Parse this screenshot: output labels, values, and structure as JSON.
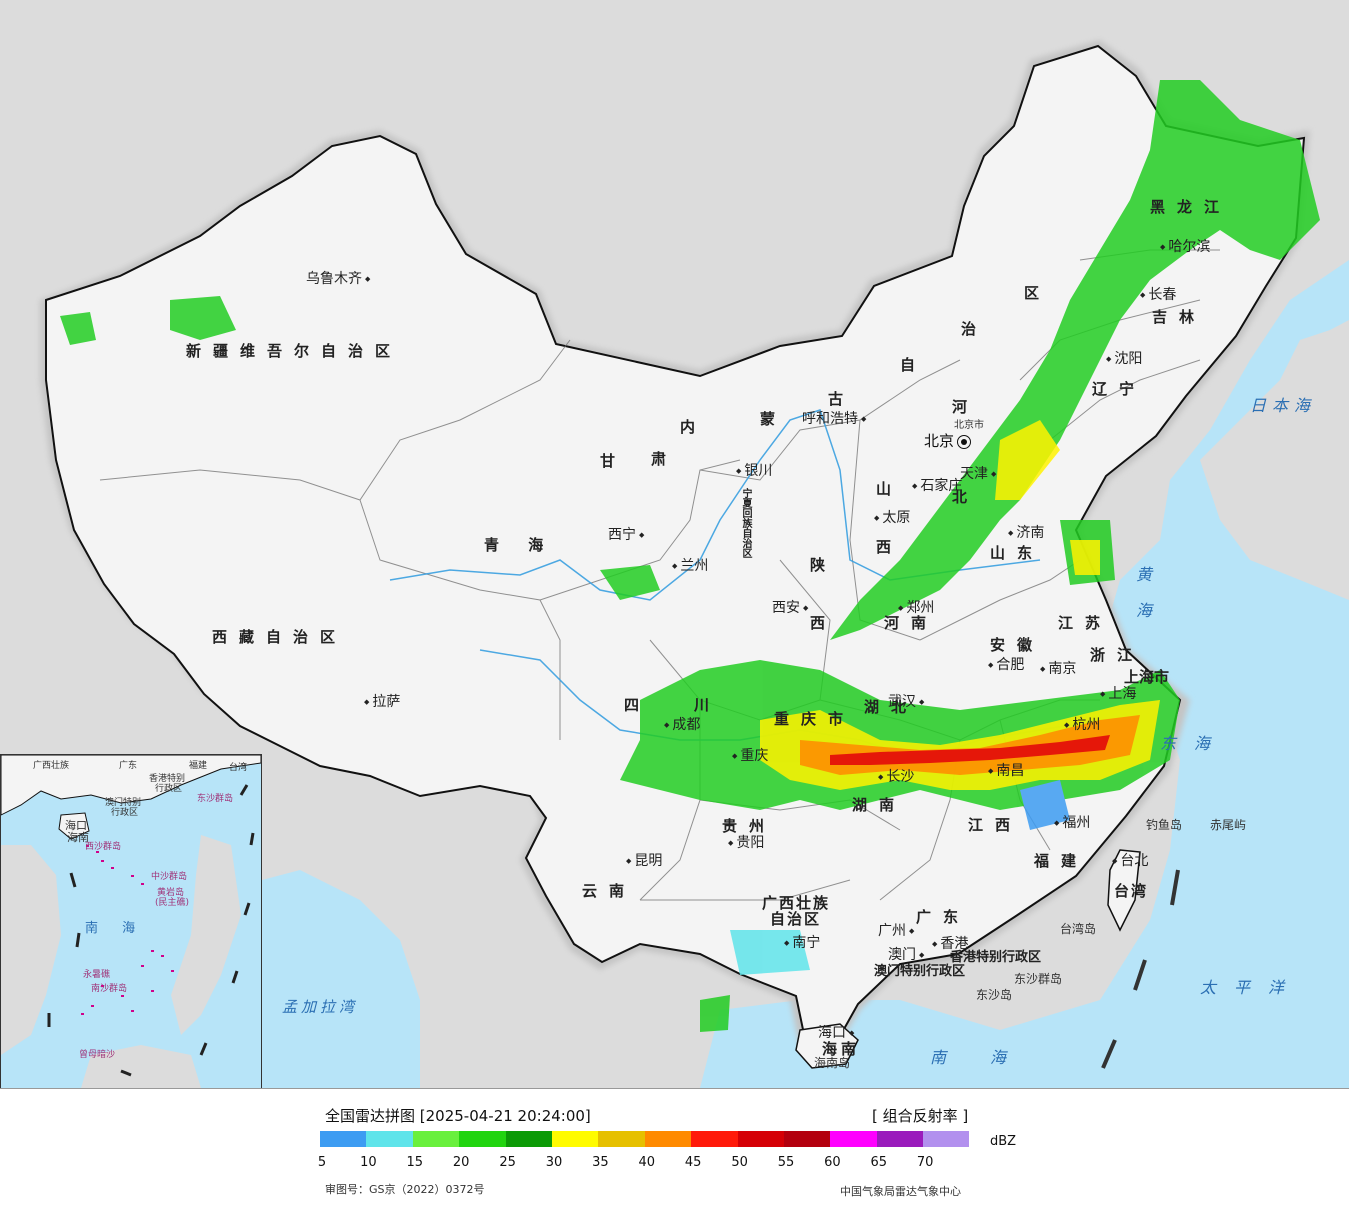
{
  "map": {
    "provinces": [
      {
        "id": "xinjiang",
        "text": "新疆维吾尔自治区"
      },
      {
        "id": "xizang",
        "text": "西藏自治区"
      },
      {
        "id": "qinghai",
        "text": "青  海"
      },
      {
        "id": "gansu",
        "text": "甘"
      },
      {
        "id": "gansu2",
        "text": "肃"
      },
      {
        "id": "neimenggu1",
        "text": "内"
      },
      {
        "id": "neimenggu2",
        "text": "蒙"
      },
      {
        "id": "neimenggu3",
        "text": "古"
      },
      {
        "id": "neimenggu4",
        "text": "自"
      },
      {
        "id": "neimenggu5",
        "text": "治"
      },
      {
        "id": "neimenggu6",
        "text": "区"
      },
      {
        "id": "heilongjiang",
        "text": "黑龙江"
      },
      {
        "id": "jilin",
        "text": "吉林"
      },
      {
        "id": "liaoning",
        "text": "辽宁"
      },
      {
        "id": "hebei1",
        "text": "河"
      },
      {
        "id": "hebei2",
        "text": "北"
      },
      {
        "id": "shandong",
        "text": "山东"
      },
      {
        "id": "shanxi1",
        "text": "山"
      },
      {
        "id": "shanxi2",
        "text": "西"
      },
      {
        "id": "shaanxi1",
        "text": "陕"
      },
      {
        "id": "shaanxi2",
        "text": "西"
      },
      {
        "id": "henan",
        "text": "河南"
      },
      {
        "id": "jiangsu",
        "text": "江苏"
      },
      {
        "id": "anhui",
        "text": "安徽"
      },
      {
        "id": "sichuan1",
        "text": "四"
      },
      {
        "id": "sichuan2",
        "text": "川"
      },
      {
        "id": "chongqing",
        "text": "重庆市"
      },
      {
        "id": "hubei",
        "text": "湖北"
      },
      {
        "id": "hunan",
        "text": "湖南"
      },
      {
        "id": "jiangxi",
        "text": "江西"
      },
      {
        "id": "zhejiang",
        "text": "浙江"
      },
      {
        "id": "fujian",
        "text": "福建"
      },
      {
        "id": "guizhou",
        "text": "贵州"
      },
      {
        "id": "yunnan",
        "text": "云南"
      },
      {
        "id": "guangxi",
        "text": "广西壮族"
      },
      {
        "id": "guangxi2",
        "text": "自治区"
      },
      {
        "id": "guangdong",
        "text": "广东"
      },
      {
        "id": "hainan",
        "text": "海南"
      },
      {
        "id": "taiwan",
        "text": "台湾"
      },
      {
        "id": "ningxia",
        "text": "宁夏回族自治区"
      },
      {
        "id": "shanghai",
        "text": "上海市"
      },
      {
        "id": "tianjin",
        "text": "天津"
      }
    ],
    "cities": [
      {
        "id": "urumqi",
        "text": "乌鲁木齐"
      },
      {
        "id": "lhasa",
        "text": "拉萨"
      },
      {
        "id": "xining",
        "text": "西宁"
      },
      {
        "id": "lanzhou",
        "text": "兰州"
      },
      {
        "id": "yinchuan",
        "text": "银川"
      },
      {
        "id": "hohhot",
        "text": "呼和浩特"
      },
      {
        "id": "taiyuan",
        "text": "太原"
      },
      {
        "id": "shijiazhuang",
        "text": "石家庄"
      },
      {
        "id": "xian",
        "text": "西安"
      },
      {
        "id": "zhengzhou",
        "text": "郑州"
      },
      {
        "id": "chengdu",
        "text": "成都"
      },
      {
        "id": "chongqing_city",
        "text": "重庆"
      },
      {
        "id": "wuhan",
        "text": "武汉"
      },
      {
        "id": "hefei",
        "text": "合肥"
      },
      {
        "id": "nanjing",
        "text": "南京"
      },
      {
        "id": "shanghai_city",
        "text": "上海"
      },
      {
        "id": "hangzhou",
        "text": "杭州"
      },
      {
        "id": "nanchang",
        "text": "南昌"
      },
      {
        "id": "changsha",
        "text": "长沙"
      },
      {
        "id": "fuzhou",
        "text": "福州"
      },
      {
        "id": "guiyang",
        "text": "贵阳"
      },
      {
        "id": "kunming",
        "text": "昆明"
      },
      {
        "id": "nanning",
        "text": "南宁"
      },
      {
        "id": "guangzhou",
        "text": "广州"
      },
      {
        "id": "macau",
        "text": "澳门"
      },
      {
        "id": "hongkong",
        "text": "香港"
      },
      {
        "id": "haikou",
        "text": "海口"
      },
      {
        "id": "taibei",
        "text": "台北"
      },
      {
        "id": "jinan",
        "text": "济南"
      },
      {
        "id": "shenyang",
        "text": "沈阳"
      },
      {
        "id": "changchun",
        "text": "长春"
      },
      {
        "id": "harbin",
        "text": "哈尔滨"
      },
      {
        "id": "tianjin_city",
        "text": "天津"
      }
    ],
    "capital": {
      "text": "北京",
      "label_small": "北京市"
    },
    "seas": [
      {
        "id": "japan_sea",
        "text": "日本海"
      },
      {
        "id": "yellow_sea",
        "text": "黄海"
      },
      {
        "id": "east_sea",
        "text": "东海"
      },
      {
        "id": "south_sea",
        "text": "南海"
      },
      {
        "id": "pacific",
        "text": "太平洋"
      },
      {
        "id": "bengal",
        "text": "孟加拉湾"
      }
    ],
    "islands": [
      {
        "id": "diaoyu",
        "text": "钓鱼岛"
      },
      {
        "id": "chiwei",
        "text": "赤尾屿"
      },
      {
        "id": "taiwan_island",
        "text": "台湾岛"
      },
      {
        "id": "dongsha",
        "text": "东沙群岛"
      },
      {
        "id": "dongsha_island",
        "text": "东沙岛"
      },
      {
        "id": "hainan_island",
        "text": "海南岛"
      }
    ],
    "sars": [
      {
        "id": "hk_sar",
        "text": "香港特别行政区"
      },
      {
        "id": "mo_sar",
        "text": "澳门特别行政区"
      }
    ],
    "inset_labels": {
      "guangxi": "广西壮族",
      "guangdong": "广东",
      "fujian": "福建",
      "taiwan": "台湾",
      "hk": "香港特别",
      "hk2": "行政区",
      "mo": "澳门特别",
      "mo2": "行政区",
      "hainan": "海南",
      "dongsha": "东沙群岛",
      "xisha": "西沙群岛",
      "zhongsha": "中沙群岛",
      "huangyan": "黄岩岛",
      "huangyan2": "(民主礁)",
      "nansha": "南沙群岛",
      "yongshu": "永暑礁",
      "zengmu": "曾母暗沙",
      "nanhai": "南海",
      "haikou": "海口",
      "sea1": "南 海"
    }
  },
  "legend": {
    "title": "全国雷达拼图 [2025-04-21 20:24:00]",
    "product": "[ 组合反射率 ]",
    "unit": "dBZ",
    "ticks": [
      "5",
      "10",
      "15",
      "20",
      "25",
      "30",
      "35",
      "40",
      "45",
      "50",
      "55",
      "60",
      "65",
      "70"
    ],
    "colors": [
      "#3d9cf2",
      "#5fe4ea",
      "#69f03d",
      "#21d40f",
      "#0b9a06",
      "#fffb00",
      "#e6c000",
      "#ff8a00",
      "#ff1a0a",
      "#d50006",
      "#b3000e",
      "#ff00ff",
      "#9a1bbc",
      "#b290ee"
    ],
    "approval": "审图号：GS京（2022）0372号",
    "source": "中国气象局雷达气象中心"
  }
}
